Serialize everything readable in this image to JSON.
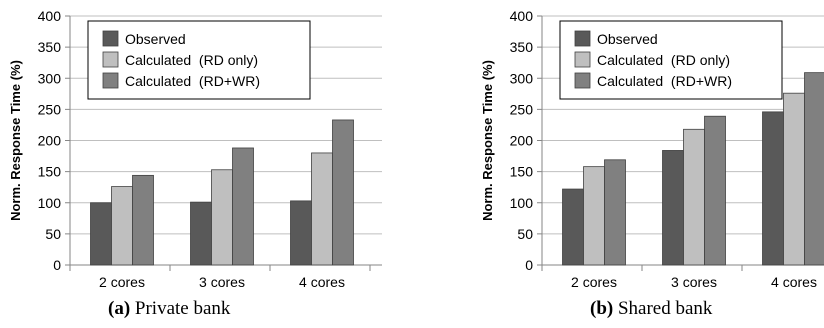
{
  "chart_data": [
    {
      "type": "bar",
      "caption_label": "(a)",
      "caption_text": "Private bank",
      "ylabel": "Norm. Response Time (%)",
      "xlabel": "",
      "ylim": [
        0,
        400
      ],
      "yticks": [
        0,
        50,
        100,
        150,
        200,
        250,
        300,
        350,
        400
      ],
      "grid": true,
      "legend_position": "top-left",
      "categories": [
        "2 cores",
        "3 cores",
        "4 cores"
      ],
      "series": [
        {
          "name": "Observed",
          "color": "#595959",
          "values": [
            100,
            101,
            103
          ]
        },
        {
          "name": "Calculated  (RD only)",
          "color": "#bfbfbf",
          "values": [
            126,
            153,
            180
          ]
        },
        {
          "name": "Calculated  (RD+WR)",
          "color": "#808080",
          "values": [
            144,
            188,
            233
          ]
        }
      ]
    },
    {
      "type": "bar",
      "caption_label": "(b)",
      "caption_text": "Shared bank",
      "ylabel": "Norm. Response Time (%)",
      "xlabel": "",
      "ylim": [
        0,
        400
      ],
      "yticks": [
        0,
        50,
        100,
        150,
        200,
        250,
        300,
        350,
        400
      ],
      "grid": true,
      "legend_position": "top-left",
      "categories": [
        "2 cores",
        "3 cores",
        "4 cores"
      ],
      "series": [
        {
          "name": "Observed",
          "color": "#595959",
          "values": [
            122,
            184,
            246
          ]
        },
        {
          "name": "Calculated  (RD only)",
          "color": "#bfbfbf",
          "values": [
            158,
            218,
            276
          ]
        },
        {
          "name": "Calculated  (RD+WR)",
          "color": "#808080",
          "values": [
            169,
            239,
            309
          ]
        }
      ]
    }
  ]
}
